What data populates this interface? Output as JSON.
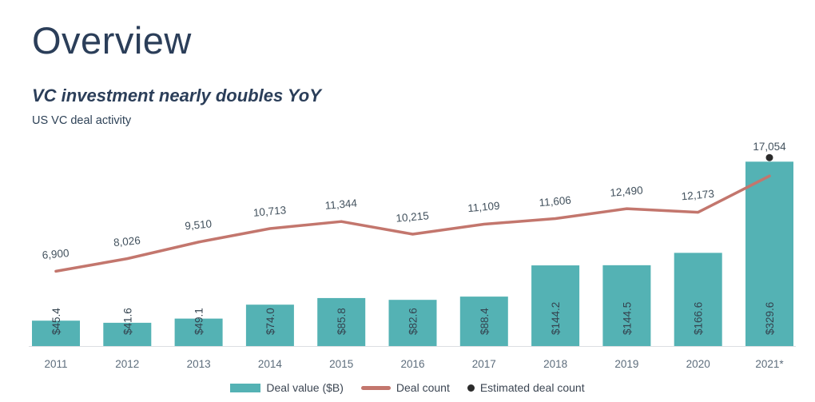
{
  "page": {
    "title": "Overview",
    "subtitle": "VC investment nearly doubles YoY",
    "caption": "US VC deal activity"
  },
  "legend": {
    "deal_value": "Deal value ($B)",
    "deal_count": "Deal count",
    "estimated": "Estimated deal count"
  },
  "colors": {
    "bar": "#54b2b4",
    "line": "#c3766d",
    "estimated_dot": "#2b2b2b",
    "title_text": "#2b3e59",
    "bar_label_text": "#34434f",
    "line_label_text": "#43525e",
    "axis_label_text": "#5d6d7c",
    "baseline": "#dcdfe2"
  },
  "chart_data": {
    "type": "bar+line",
    "title": "US VC deal activity",
    "categories": [
      "2011",
      "2012",
      "2013",
      "2014",
      "2015",
      "2016",
      "2017",
      "2018",
      "2019",
      "2020",
      "2021*"
    ],
    "series": [
      {
        "name": "Deal value ($B)",
        "type": "bar",
        "values": [
          45.4,
          41.6,
          49.1,
          74.0,
          85.8,
          82.6,
          88.4,
          144.2,
          144.5,
          166.6,
          329.6
        ],
        "labels": [
          "$45.4",
          "$41.6",
          "$49.1",
          "$74.0",
          "$85.8",
          "$82.6",
          "$88.4",
          "$144.2",
          "$144.5",
          "$166.6",
          "$329.6"
        ]
      },
      {
        "name": "Deal count",
        "type": "line",
        "values": [
          6900,
          8026,
          9510,
          10713,
          11344,
          10215,
          11109,
          11606,
          12490,
          12173,
          null
        ],
        "labels": [
          "6,900",
          "8,026",
          "9,510",
          "10,713",
          "11,344",
          "10,215",
          "11,109",
          "11,606",
          "12,490",
          "12,173",
          null
        ]
      },
      {
        "name": "Estimated deal count",
        "type": "point",
        "category": "2021*",
        "value": 17054,
        "label": "17,054"
      }
    ],
    "legend_position": "bottom",
    "grid": false
  }
}
